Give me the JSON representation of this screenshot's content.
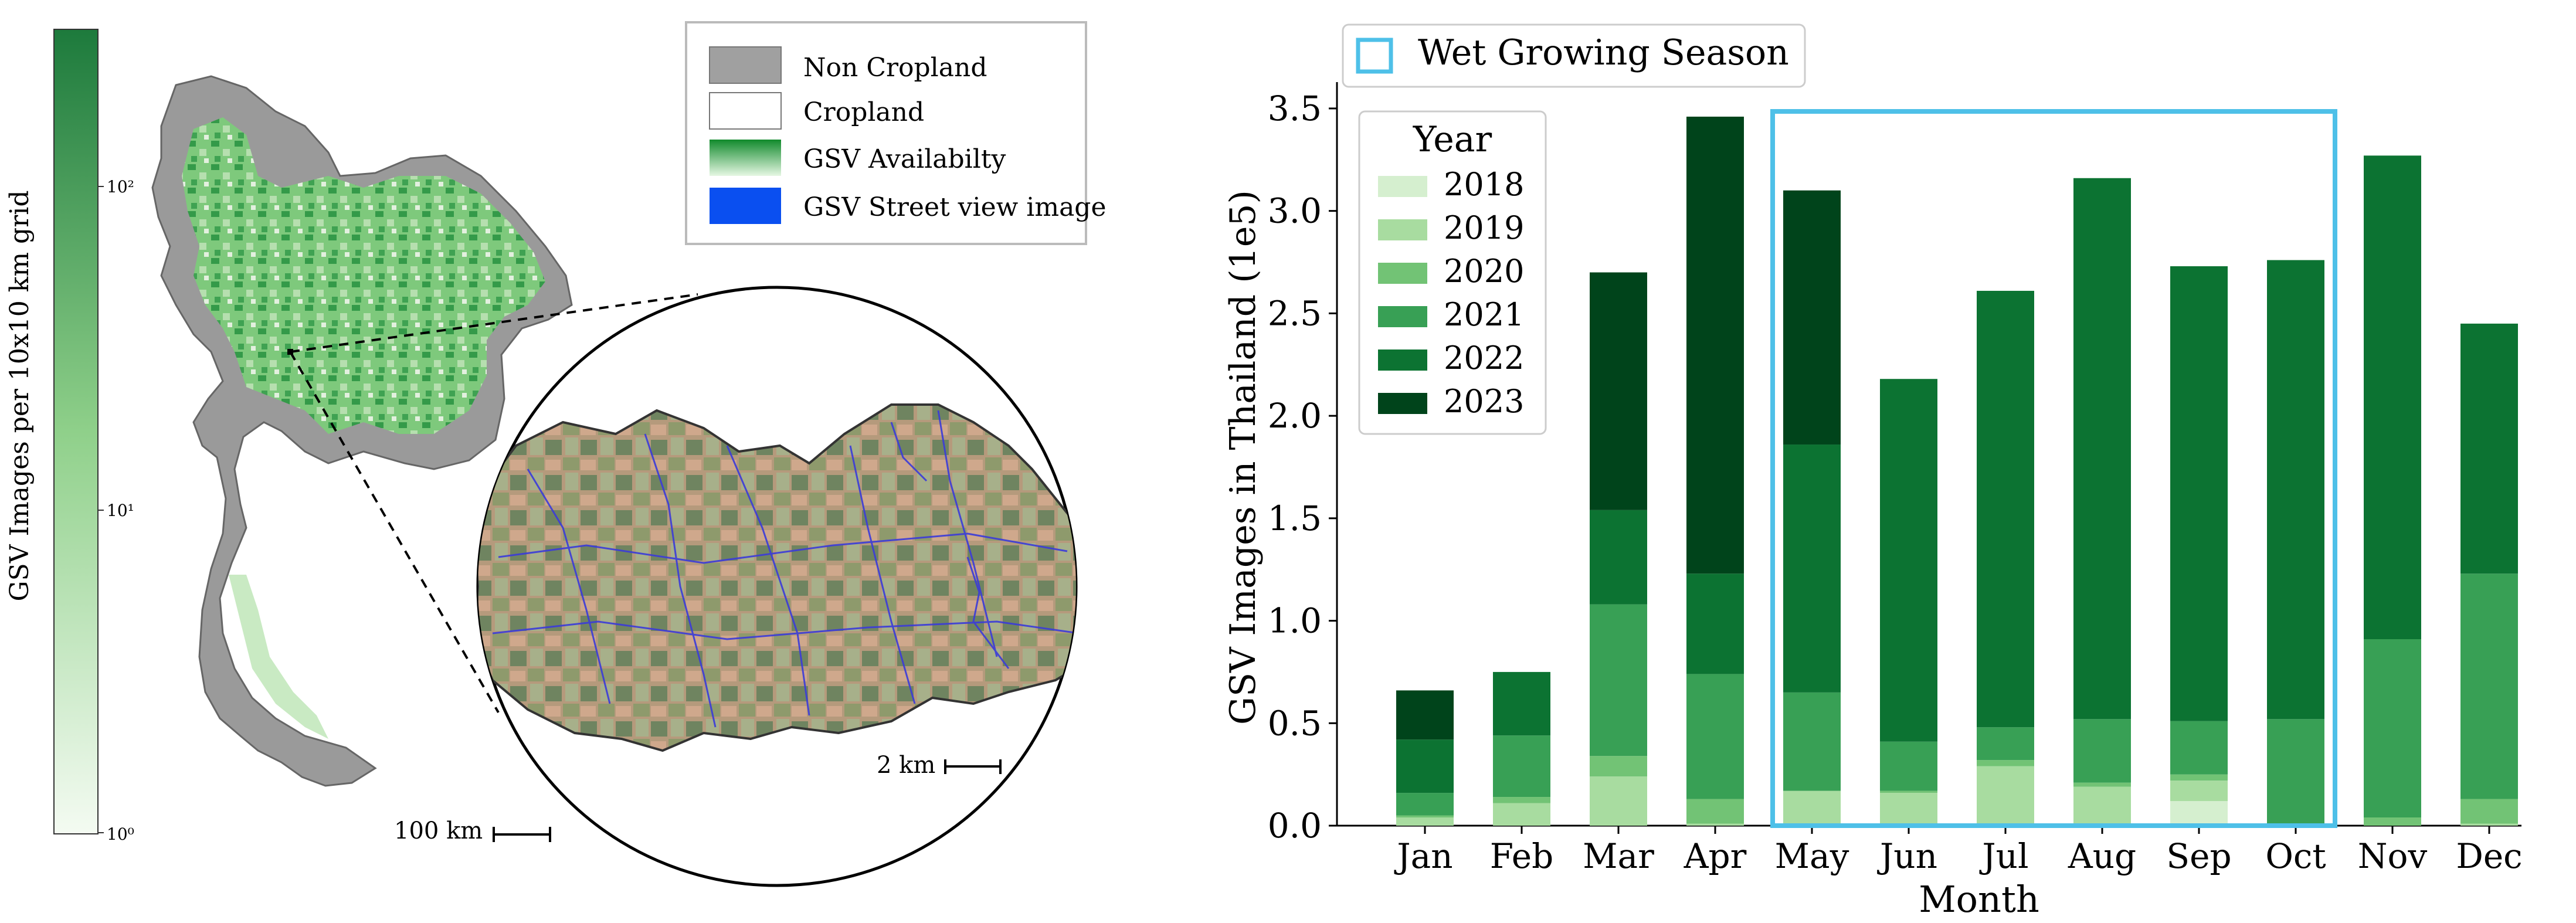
{
  "map_panel": {
    "colorbar_label": "GSV Images per 10x10 km grid",
    "colorbar_ticks": [
      "10²",
      "10¹",
      "10⁰"
    ],
    "colorbar_colors": {
      "high": "#1d7a3c",
      "low": "#f4fbf2"
    },
    "legend": [
      {
        "label": "Non Cropland",
        "color": "#a0a0a0"
      },
      {
        "label": "Cropland",
        "color": "#ffffff"
      },
      {
        "label": "GSV Availabilty",
        "color": "#2ea043"
      },
      {
        "label": "GSV Street view image",
        "color": "#0a4ff0"
      }
    ],
    "scale_bar_main": "100 km",
    "scale_bar_inset": "2 km"
  },
  "chart_data": {
    "type": "bar",
    "stacked": true,
    "title": "",
    "xlabel": "Month",
    "ylabel": "GSV Images in Thailand (1e5)",
    "ylim": [
      0,
      3.6
    ],
    "yticks": [
      "0.0",
      "0.5",
      "1.0",
      "1.5",
      "2.0",
      "2.5",
      "3.0",
      "3.5"
    ],
    "categories": [
      "Jan",
      "Feb",
      "Mar",
      "Apr",
      "May",
      "Jun",
      "Jul",
      "Aug",
      "Sep",
      "Oct",
      "Nov",
      "Dec"
    ],
    "legend_title": "Year",
    "series": [
      {
        "name": "2018",
        "color": "#d5efcf",
        "values": [
          0,
          0,
          0,
          0,
          0,
          0,
          0,
          0,
          0.12,
          0,
          0,
          0
        ]
      },
      {
        "name": "2019",
        "color": "#a8dca0",
        "values": [
          0.04,
          0.11,
          0.24,
          0.01,
          0.17,
          0.16,
          0.29,
          0.19,
          0.1,
          0.01,
          0,
          0.01
        ]
      },
      {
        "name": "2020",
        "color": "#72c375",
        "values": [
          0.01,
          0.03,
          0.1,
          0.12,
          0,
          0.01,
          0.03,
          0.02,
          0.03,
          0,
          0.04,
          0.12
        ]
      },
      {
        "name": "2021",
        "color": "#38a055",
        "values": [
          0.11,
          0.3,
          0.74,
          0.61,
          0.48,
          0.24,
          0.16,
          0.31,
          0.26,
          0.51,
          0.87,
          1.1
        ]
      },
      {
        "name": "2022",
        "color": "#0c7332",
        "values": [
          0.26,
          0.31,
          0.46,
          0.49,
          1.21,
          1.77,
          2.13,
          2.64,
          2.22,
          2.24,
          2.36,
          1.22
        ]
      },
      {
        "name": "2023",
        "color": "#00441b",
        "values": [
          0.24,
          0,
          1.16,
          2.23,
          1.24,
          0,
          0,
          0,
          0,
          0,
          0,
          0
        ]
      }
    ],
    "annotation": {
      "label": "Wet Growing Season",
      "color": "#4ec0e8",
      "span": [
        "May",
        "Oct"
      ]
    }
  }
}
